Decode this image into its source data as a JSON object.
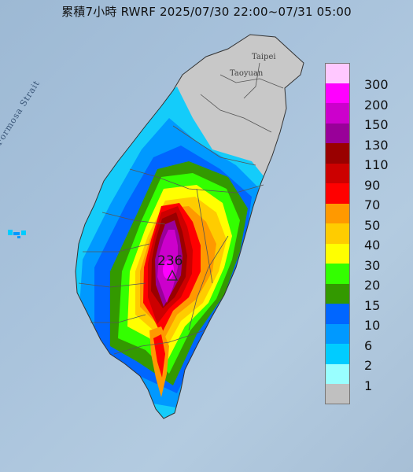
{
  "title": "累積7小時 RWRF 2025/07/30 22:00~07/31 05:00",
  "map": {
    "strait_label": "Formosa Strait",
    "cities": [
      {
        "name": "Taipei"
      },
      {
        "name": "Taoyuan"
      }
    ],
    "max_value": "236",
    "max_marker": "triangle",
    "colors": {
      "sea": "#a9c3dc",
      "land_no_rain": "#c8c8c8",
      "border": "#555555"
    }
  },
  "legend": {
    "bins": [
      {
        "label": "300",
        "color": "#ffc8ff"
      },
      {
        "label": "200",
        "color": "#ff00ff"
      },
      {
        "label": "150",
        "color": "#cc00cc"
      },
      {
        "label": "130",
        "color": "#990099"
      },
      {
        "label": "110",
        "color": "#990000"
      },
      {
        "label": "90",
        "color": "#cc0000"
      },
      {
        "label": "70",
        "color": "#ff0000"
      },
      {
        "label": "50",
        "color": "#ff9900"
      },
      {
        "label": "40",
        "color": "#ffcc00"
      },
      {
        "label": "30",
        "color": "#ffff00"
      },
      {
        "label": "20",
        "color": "#33ff00"
      },
      {
        "label": "15",
        "color": "#339900"
      },
      {
        "label": "10",
        "color": "#0066ff"
      },
      {
        "label": "6",
        "color": "#0099ff"
      },
      {
        "label": "2",
        "color": "#00ccff"
      },
      {
        "label": "1",
        "color": "#99ffff"
      },
      {
        "label": "",
        "color": "#c0c0c0"
      }
    ]
  }
}
